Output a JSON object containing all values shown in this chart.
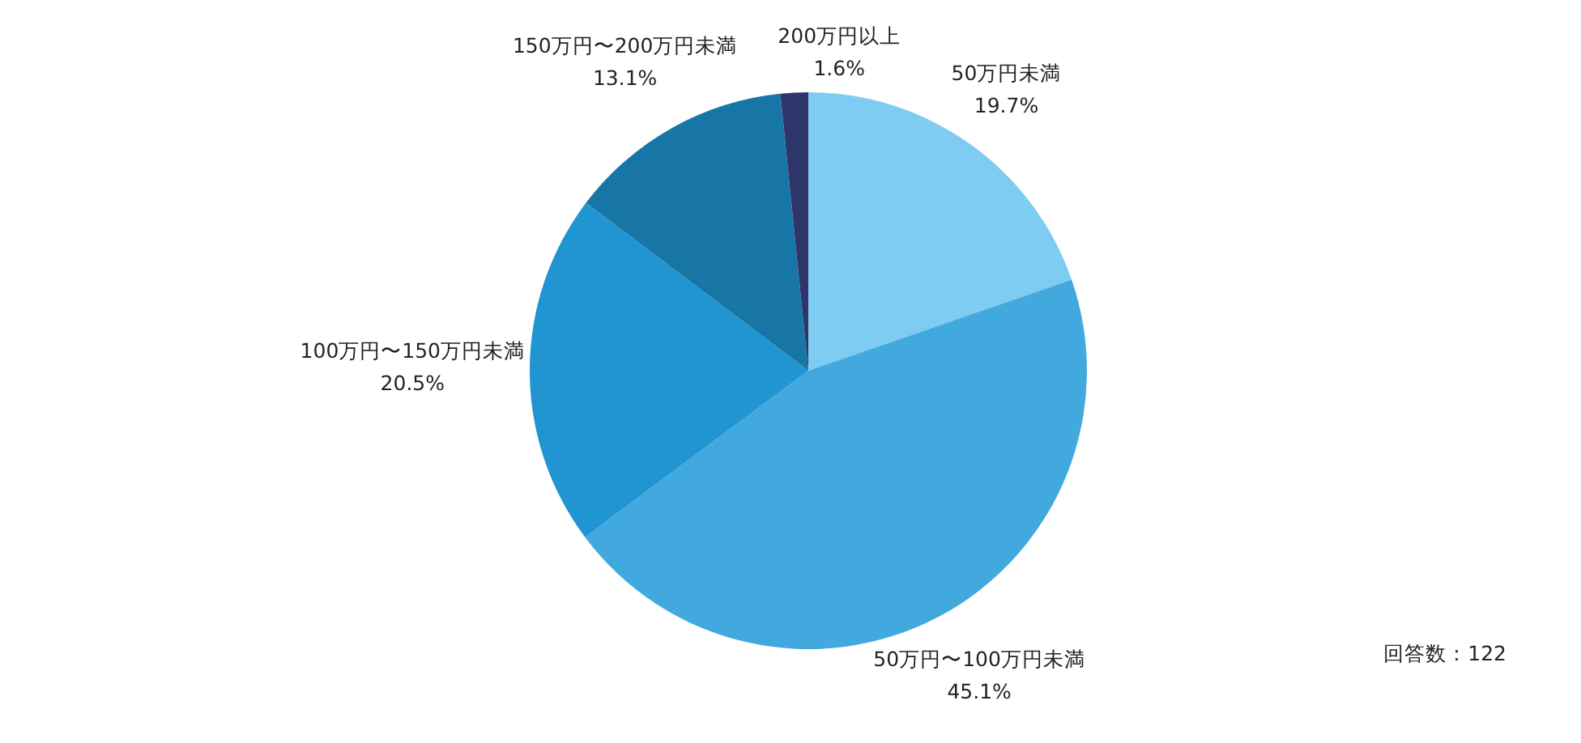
{
  "chart_data": {
    "type": "pie",
    "categories": [
      "50万円未満",
      "50万円〜100万円未満",
      "100万円〜150万円未満",
      "150万円〜200万円未満",
      "200万円以上"
    ],
    "values": [
      19.7,
      45.1,
      20.5,
      13.1,
      1.6
    ],
    "colors": [
      "#7fccf2",
      "#42a9df",
      "#2195d2",
      "#1776a6",
      "#2e356b"
    ],
    "value_labels": [
      "19.7%",
      "45.1%",
      "20.5%",
      "13.1%",
      "1.6%"
    ],
    "annotations": [
      "回答数：122"
    ]
  }
}
